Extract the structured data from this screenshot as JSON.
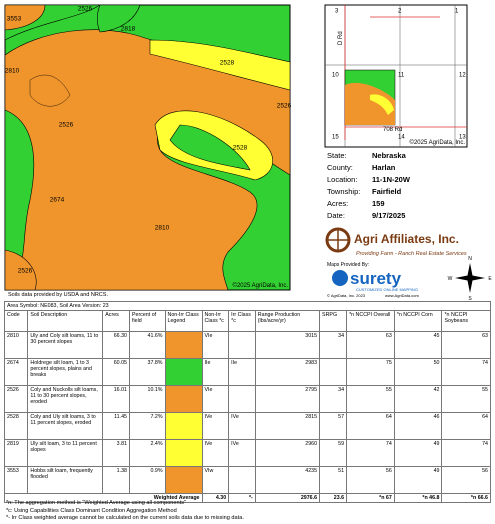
{
  "map": {
    "labels": [
      "2526",
      "3553",
      "2818",
      "2528",
      "2810",
      "2526",
      "2526",
      "2528",
      "2674",
      "2810",
      "2526"
    ],
    "copyright": "©2025 AgriData, Inc."
  },
  "inset": {
    "sections": [
      "3",
      "2",
      "1",
      "10",
      "11",
      "12",
      "15",
      "14",
      "13"
    ],
    "roads": [
      "D Rd",
      "708 Rd"
    ],
    "copyright": "©2025 AgriData, Inc."
  },
  "location": [
    [
      "State:",
      "Nebraska"
    ],
    [
      "County:",
      "Harlan"
    ],
    [
      "Location:",
      "11-1N-20W"
    ],
    [
      "Township:",
      "Fairfield"
    ],
    [
      "Acres:",
      "159"
    ],
    [
      "Date:",
      "9/17/2025"
    ]
  ],
  "branding": {
    "company": "Agri Affiliates, Inc.",
    "tagline": "Providing Farm - Ranch Real Estate Services",
    "maps_by": "Maps Provided By:",
    "provider": "surety",
    "provider_tag": "CUSTOMIZED ONLINE MAPPING",
    "provider_copy": "© AgriData, Inc. 2023",
    "provider_url": "www.AgriData.com",
    "compass": [
      "N",
      "W",
      "E",
      "S"
    ]
  },
  "source_note": "Soils data provided by USDA and NRCS.",
  "table": {
    "caption": "Area Symbol: NE083, Soil Area Version: 23",
    "headers": [
      "Code",
      "Soil Description",
      "Acres",
      "Percent of field",
      "Non-Irr Class Legend",
      "Non-Irr Class *c",
      "Irr Class *c",
      "Range Production (lbs/acre/yr)",
      "SRPG",
      "*n NCCPI Overall",
      "*n NCCPI Corn",
      "*n NCCPI Soybeans"
    ],
    "rows": [
      {
        "code": "2810",
        "description": "Uly and Coly silt loams, 11 to 30 percent slopes",
        "acres": "66.30",
        "percent": "41.6%",
        "legend_color": "#f0952c",
        "non_irr": "VIe",
        "range": "3015",
        "srpg": "34",
        "overall": "63",
        "corn": "45",
        "soy": "63"
      },
      {
        "code": "2674",
        "description": "Holdrege silt loam, 1 to 3 percent slopes, plains and breaks",
        "acres": "60.05",
        "percent": "37.8%",
        "legend_color": "#33d033",
        "non_irr": "IIe",
        "irr": "IIe",
        "range": "2983",
        "overall": "75",
        "corn": "50",
        "soy": "74"
      },
      {
        "code": "2526",
        "description": "Coly and Nuckolls silt loams, 11 to 30 percent slopes, eroded",
        "acres": "16.01",
        "percent": "10.1%",
        "legend_color": "#f0952c",
        "non_irr": "VIe",
        "range": "2795",
        "srpg": "34",
        "overall": "55",
        "corn": "42",
        "soy": "55"
      },
      {
        "code": "2528",
        "description": "Coly and Uly silt loams, 3 to 11 percent slopes, eroded",
        "acres": "11.45",
        "percent": "7.2%",
        "legend_color": "#ffff33",
        "non_irr": "IVe",
        "irr": "IVe",
        "range": "2815",
        "srpg": "57",
        "overall": "64",
        "corn": "46",
        "soy": "64"
      },
      {
        "code": "2819",
        "description": "Uly silt loam, 3 to 11 percent slopes",
        "acres": "3.81",
        "percent": "2.4%",
        "legend_color": "#ffff33",
        "non_irr": "IVe",
        "irr": "IVe",
        "range": "2960",
        "srpg": "59",
        "overall": "74",
        "corn": "49",
        "soy": "74"
      },
      {
        "code": "3553",
        "description": "Hobbs silt loam, frequently flooded",
        "acres": "1.38",
        "percent": "0.9%",
        "legend_color": "#f0952c",
        "non_irr": "VIw",
        "range": "4235",
        "srpg": "51",
        "overall": "56",
        "corn": "49",
        "soy": "56"
      }
    ],
    "total": {
      "label": "Weighted Average",
      "non_irr": "4.30",
      "irr": "*-",
      "range": "2976.6",
      "srpg": "23.6",
      "overall": "*n 67",
      "corn": "*n 46.8",
      "soy": "*n 66.6"
    }
  },
  "footnotes": [
    "*n: The aggregation method is \"Weighted Average using all components\"",
    "*c: Using Capabilities Class Dominant Condition Aggregation Method",
    "*- Irr Class weighted average cannot be calculated on the current soils data due to missing data."
  ]
}
